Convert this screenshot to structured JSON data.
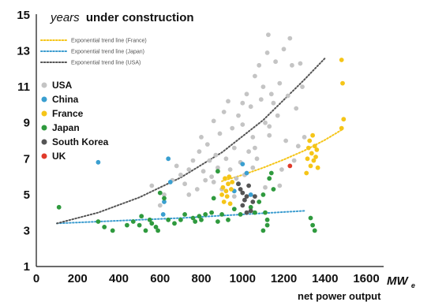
{
  "chart_data": {
    "type": "scatter",
    "title": "",
    "ylabel_italic": "years",
    "ylabel_rest": "under construction",
    "xunit_main": "MW",
    "xunit_sub": "e",
    "xlabel": "net power output",
    "xlim": [
      0,
      1600
    ],
    "ylim": [
      1,
      15
    ],
    "xticks": [
      0,
      200,
      400,
      600,
      800,
      1000,
      1200,
      1400,
      1600
    ],
    "yticks": [
      1,
      3,
      5,
      7,
      9,
      11,
      13,
      15
    ],
    "grid": false,
    "legend_position": "top-left",
    "trend_lines": [
      {
        "name": "Exponential trend line (France)",
        "color": "#f5c518",
        "x": [
          900,
          1000,
          1100,
          1200,
          1300,
          1400,
          1480
        ],
        "y": [
          5.75,
          6.1,
          6.5,
          6.95,
          7.45,
          8.05,
          8.6
        ]
      },
      {
        "name": "Exponential trend line (Japan)",
        "color": "#3b9ccf",
        "x": [
          100,
          400,
          700,
          1000,
          1300
        ],
        "y": [
          3.4,
          3.55,
          3.7,
          3.9,
          4.1
        ]
      },
      {
        "name": "Exponential trend line (USA)",
        "color": "#555555",
        "x": [
          100,
          300,
          500,
          700,
          900,
          1100,
          1300,
          1400
        ],
        "y": [
          3.4,
          4.0,
          4.85,
          5.95,
          7.35,
          9.15,
          11.4,
          12.6
        ]
      }
    ],
    "series": [
      {
        "name": "USA",
        "color": "#c4c4c4",
        "points": [
          [
            560,
            5.5
          ],
          [
            600,
            4.4
          ],
          [
            620,
            5.0
          ],
          [
            660,
            5.8
          ],
          [
            700,
            6.1
          ],
          [
            720,
            5.6
          ],
          [
            740,
            6.4
          ],
          [
            760,
            6.9
          ],
          [
            780,
            5.3
          ],
          [
            790,
            7.4
          ],
          [
            800,
            8.2
          ],
          [
            810,
            6.3
          ],
          [
            820,
            5.8
          ],
          [
            830,
            7.8
          ],
          [
            840,
            6.9
          ],
          [
            850,
            6.0
          ],
          [
            860,
            9.1
          ],
          [
            870,
            7.2
          ],
          [
            880,
            6.5
          ],
          [
            890,
            8.4
          ],
          [
            900,
            5.3
          ],
          [
            910,
            9.6
          ],
          [
            920,
            7.0
          ],
          [
            930,
            10.2
          ],
          [
            940,
            6.4
          ],
          [
            950,
            8.7
          ],
          [
            960,
            7.6
          ],
          [
            970,
            5.9
          ],
          [
            980,
            9.4
          ],
          [
            990,
            6.8
          ],
          [
            1000,
            8.9
          ],
          [
            1010,
            6.1
          ],
          [
            1020,
            10.6
          ],
          [
            1030,
            7.4
          ],
          [
            1040,
            9.9
          ],
          [
            1050,
            8.2
          ],
          [
            1060,
            11.6
          ],
          [
            1070,
            7.0
          ],
          [
            1080,
            12.2
          ],
          [
            1090,
            10.3
          ],
          [
            1100,
            11.0
          ],
          [
            1110,
            9.0
          ],
          [
            1120,
            12.9
          ],
          [
            1125,
            13.9
          ],
          [
            1130,
            8.3
          ],
          [
            1140,
            10.6
          ],
          [
            1150,
            10.1
          ],
          [
            1160,
            12.4
          ],
          [
            1170,
            9.4
          ],
          [
            1180,
            11.2
          ],
          [
            1190,
            6.4
          ],
          [
            1200,
            13.1
          ],
          [
            1210,
            8.0
          ],
          [
            1220,
            10.5
          ],
          [
            1230,
            13.7
          ],
          [
            1240,
            12.2
          ],
          [
            1250,
            6.9
          ],
          [
            1260,
            9.8
          ],
          [
            1270,
            7.7
          ],
          [
            1280,
            12.3
          ],
          [
            1290,
            11.0
          ],
          [
            1300,
            8.2
          ],
          [
            1110,
            5.4
          ],
          [
            1060,
            7.6
          ],
          [
            960,
            4.9
          ],
          [
            860,
            5.7
          ],
          [
            740,
            5.0
          ],
          [
            680,
            6.6
          ],
          [
            1000,
            10.1
          ],
          [
            1180,
            5.5
          ],
          [
            1130,
            8.8
          ],
          [
            1050,
            6.5
          ]
        ]
      },
      {
        "name": "China",
        "color": "#3a9fd0",
        "points": [
          [
            300,
            6.8
          ],
          [
            640,
            7.0
          ],
          [
            650,
            5.7
          ],
          [
            620,
            4.6
          ],
          [
            615,
            3.9
          ],
          [
            1000,
            6.7
          ],
          [
            1020,
            6.2
          ],
          [
            960,
            5.2
          ],
          [
            980,
            5.6
          ],
          [
            1040,
            5.0
          ]
        ]
      },
      {
        "name": "France",
        "color": "#f5c518",
        "points": [
          [
            900,
            5.0
          ],
          [
            905,
            5.4
          ],
          [
            910,
            4.6
          ],
          [
            915,
            5.9
          ],
          [
            920,
            5.2
          ],
          [
            925,
            4.9
          ],
          [
            930,
            5.6
          ],
          [
            935,
            6.0
          ],
          [
            940,
            4.5
          ],
          [
            945,
            5.3
          ],
          [
            950,
            5.7
          ],
          [
            1310,
            6.2
          ],
          [
            1315,
            7.0
          ],
          [
            1320,
            7.6
          ],
          [
            1325,
            8.0
          ],
          [
            1330,
            6.6
          ],
          [
            1335,
            7.3
          ],
          [
            1340,
            8.3
          ],
          [
            1345,
            6.9
          ],
          [
            1350,
            7.7
          ],
          [
            1355,
            7.1
          ],
          [
            1360,
            7.5
          ],
          [
            1365,
            6.5
          ],
          [
            1480,
            12.5
          ],
          [
            1485,
            11.2
          ],
          [
            1490,
            9.2
          ],
          [
            1480,
            8.7
          ]
        ]
      },
      {
        "name": "Japan",
        "color": "#2f9a3e",
        "points": [
          [
            110,
            4.3
          ],
          [
            300,
            3.5
          ],
          [
            330,
            3.2
          ],
          [
            370,
            3.0
          ],
          [
            440,
            3.3
          ],
          [
            470,
            3.5
          ],
          [
            500,
            3.3
          ],
          [
            510,
            3.8
          ],
          [
            530,
            3.0
          ],
          [
            550,
            3.6
          ],
          [
            560,
            3.4
          ],
          [
            580,
            3.2
          ],
          [
            590,
            3.0
          ],
          [
            600,
            5.1
          ],
          [
            620,
            4.8
          ],
          [
            640,
            3.6
          ],
          [
            670,
            3.4
          ],
          [
            700,
            3.6
          ],
          [
            720,
            3.9
          ],
          [
            760,
            3.7
          ],
          [
            770,
            3.5
          ],
          [
            790,
            3.8
          ],
          [
            800,
            3.6
          ],
          [
            820,
            3.9
          ],
          [
            850,
            4.0
          ],
          [
            880,
            3.5
          ],
          [
            900,
            3.9
          ],
          [
            930,
            3.6
          ],
          [
            960,
            4.2
          ],
          [
            990,
            3.9
          ],
          [
            1040,
            4.3
          ],
          [
            1060,
            4.0
          ],
          [
            1080,
            4.6
          ],
          [
            1100,
            5.0
          ],
          [
            1110,
            4.0
          ],
          [
            1120,
            3.6
          ],
          [
            1130,
            5.9
          ],
          [
            1140,
            6.2
          ],
          [
            1150,
            5.3
          ],
          [
            1100,
            3.0
          ],
          [
            1120,
            3.3
          ],
          [
            1330,
            3.7
          ],
          [
            1340,
            3.3
          ],
          [
            1350,
            3.0
          ],
          [
            880,
            6.3
          ],
          [
            860,
            4.8
          ]
        ]
      },
      {
        "name": "South Korea",
        "color": "#555555",
        "points": [
          [
            990,
            5.3
          ],
          [
            1000,
            5.1
          ],
          [
            1010,
            4.7
          ],
          [
            1020,
            4.9
          ],
          [
            1030,
            5.5
          ],
          [
            1000,
            4.4
          ],
          [
            1040,
            4.1
          ],
          [
            1050,
            4.6
          ],
          [
            1020,
            4.0
          ],
          [
            980,
            5.6
          ],
          [
            1060,
            4.9
          ]
        ]
      },
      {
        "name": "UK",
        "color": "#e03a2a",
        "points": [
          [
            1230,
            6.6
          ]
        ]
      }
    ]
  }
}
